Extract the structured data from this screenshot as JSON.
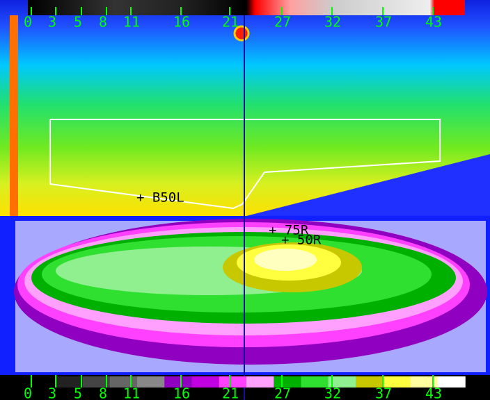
{
  "top_scale": {
    "labels": [
      "0",
      "3",
      "5",
      "8",
      "11",
      "16",
      "21",
      "27",
      "32",
      "37",
      "43"
    ]
  },
  "bottom_scale": {
    "labels": [
      "0",
      "3",
      "5",
      "8",
      "11",
      "16",
      "21",
      "27",
      "32",
      "37",
      "43"
    ]
  },
  "markers": [
    {
      "label": "+ B50L"
    },
    {
      "label": "+ 75R"
    },
    {
      "label": "+ 50R"
    }
  ]
}
